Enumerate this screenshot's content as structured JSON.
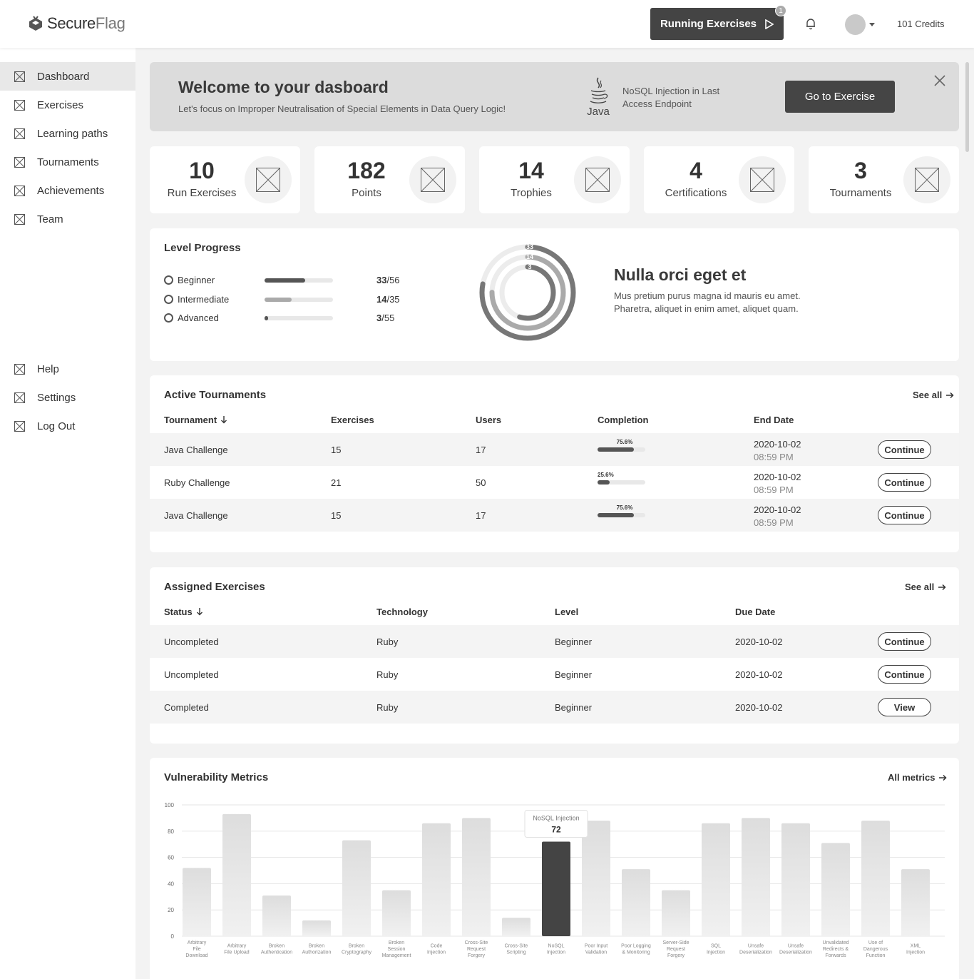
{
  "brand": {
    "name_part1": "Secure",
    "name_part2": "Flag"
  },
  "header": {
    "running_label": "Running Exercises",
    "running_count": "1",
    "credits": "101 Credits"
  },
  "sidebar": {
    "items": [
      {
        "label": "Dashboard",
        "active": true
      },
      {
        "label": "Exercises"
      },
      {
        "label": "Learning paths"
      },
      {
        "label": "Tournaments"
      },
      {
        "label": "Achievements"
      },
      {
        "label": "Team"
      }
    ],
    "bottom_items": [
      {
        "label": "Help"
      },
      {
        "label": "Settings"
      },
      {
        "label": "Log Out"
      }
    ]
  },
  "welcome": {
    "title": "Welcome to your dasboard",
    "subtitle": "Let's focus on Improper Neutralisation of Special Elements in Data Query Logic!",
    "java_label": "Java",
    "exercise_text": "NoSQL Injection in Last Access Endpoint",
    "button": "Go to Exercise"
  },
  "stats": [
    {
      "value": "10",
      "label": "Run Exercises"
    },
    {
      "value": "182",
      "label": "Points"
    },
    {
      "value": "14",
      "label": "Trophies"
    },
    {
      "value": "4",
      "label": "Certifications"
    },
    {
      "value": "3",
      "label": "Tournaments"
    }
  ],
  "level_progress": {
    "title": "Level Progress",
    "levels": [
      {
        "name": "Beginner",
        "done": "33",
        "total": "/56",
        "fraction": 0.589,
        "color": "#555555"
      },
      {
        "name": "Intermediate",
        "done": "14",
        "total": "/35",
        "fraction": 0.4,
        "color": "#aaaaaa"
      },
      {
        "name": "Advanced",
        "done": "3",
        "total": "/55",
        "fraction": 0.055,
        "color": "#555555"
      }
    ],
    "ring_labels": [
      "33",
      "14",
      "3"
    ],
    "promo_title": "Nulla orci eget et",
    "promo_text": "Mus pretium purus magna id mauris eu amet. Pharetra, aliquet in enim amet, aliquet quam."
  },
  "tournaments": {
    "title": "Active Tournaments",
    "see_all": "See all",
    "headers": [
      "Tournament",
      "Exercises",
      "Users",
      "Completion",
      "End Date"
    ],
    "rows": [
      {
        "name": "Java Challenge",
        "exercises": "15",
        "users": "17",
        "completion": "75.6%",
        "completion_value": 0.756,
        "date": "2020-10-02",
        "time": "08:59 PM",
        "action": "Continue"
      },
      {
        "name": "Ruby Challenge",
        "exercises": "21",
        "users": "50",
        "completion": "25.6%",
        "completion_value": 0.256,
        "date": "2020-10-02",
        "time": "08:59 PM",
        "action": "Continue"
      },
      {
        "name": "Java Challenge",
        "exercises": "15",
        "users": "17",
        "completion": "75.6%",
        "completion_value": 0.756,
        "date": "2020-10-02",
        "time": "08:59 PM",
        "action": "Continue"
      }
    ]
  },
  "assigned": {
    "title": "Assigned Exercises",
    "see_all": "See all",
    "headers": [
      "Status",
      "Technology",
      "Level",
      "Due Date"
    ],
    "rows": [
      {
        "status": "Uncompleted",
        "technology": "Ruby",
        "level": "Beginner",
        "due": "2020-10-02",
        "action": "Continue"
      },
      {
        "status": "Uncompleted",
        "technology": "Ruby",
        "level": "Beginner",
        "due": "2020-10-02",
        "action": "Continue"
      },
      {
        "status": "Completed",
        "technology": "Ruby",
        "level": "Beginner",
        "due": "2020-10-02",
        "action": "View"
      }
    ]
  },
  "metrics": {
    "title": "Vulnerability Metrics",
    "all_link": "All metrics",
    "tooltip": {
      "label": "NoSQL Injection",
      "value": "72"
    }
  },
  "chart_data": {
    "type": "bar",
    "ylim": [
      0,
      100
    ],
    "yticks": [
      0,
      20,
      40,
      60,
      80,
      100
    ],
    "grid": true,
    "highlight_index": 9,
    "categories": [
      "Arbitrary File Download",
      "Arbitrary File Upload",
      "Broken Authentication",
      "Broken Authorization",
      "Broken Cryptography",
      "Broken Session Management",
      "Code Injection",
      "Cross-Site Request Forgery",
      "Cross-Site Scripting",
      "NoSQL Injection",
      "Poor Input Validation",
      "Poor Logging & Monitoring",
      "Server-Side Request Forgery",
      "SQL Injection",
      "Unsafe Deserialization",
      "Unsafe Deserialization",
      "Unvalidated Redirects & Forwards",
      "Use of Dangerous Function",
      "XML Injection"
    ],
    "values": [
      52,
      93,
      31,
      12,
      73,
      35,
      86,
      90,
      14,
      72,
      88,
      51,
      35,
      86,
      90,
      86,
      71,
      88,
      51
    ]
  }
}
